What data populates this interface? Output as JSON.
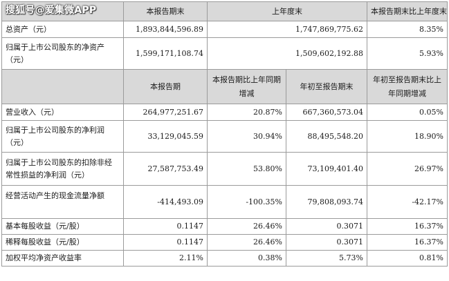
{
  "watermark": "搜狐号@爱集微APP",
  "table1": {
    "headers": [
      "",
      "本报告期末",
      "上年度末",
      "本报告期末比上年度末增减"
    ],
    "rows": [
      {
        "label": "总资产（元）",
        "current": "1,893,844,596.89",
        "prior": "1,747,869,775.62",
        "change": "8.35%"
      },
      {
        "label_line1": "归属于上市公司股东的净资产",
        "label_line2": "（元）",
        "current": "1,599,171,108.74",
        "prior": "1,509,602,192.88",
        "change": "5.93%"
      }
    ]
  },
  "table2": {
    "headers": [
      "",
      "本报告期",
      {
        "line1": "本报告期比上年同期",
        "line2": "增减"
      },
      "年初至报告期末",
      {
        "line1": "年初至报告期末比上",
        "line2": "年同期增减"
      }
    ],
    "rows": [
      {
        "label": "营业收入（元）",
        "period": "264,977,251.67",
        "period_change": "20.87%",
        "ytd": "667,360,573.04",
        "ytd_change": "0.05%"
      },
      {
        "label_line1": "归属于上市公司股东的净利润",
        "label_line2": "（元）",
        "period": "33,129,045.59",
        "period_change": "30.94%",
        "ytd": "88,495,548.20",
        "ytd_change": "18.90%"
      },
      {
        "label_line1": "归属于上市公司股东的扣除非经",
        "label_line2": "常性损益的净利润（元）",
        "period": "27,587,753.49",
        "period_change": "53.80%",
        "ytd": "73,109,401.40",
        "ytd_change": "26.97%"
      },
      {
        "label": "经营活动产生的现金流量净额",
        "period": "-414,493.09",
        "period_change": "-100.35%",
        "ytd": "79,808,093.74",
        "ytd_change": "-42.17%"
      },
      {
        "label": "基本每股收益（元/股）",
        "period": "0.1147",
        "period_change": "26.46%",
        "ytd": "0.3071",
        "ytd_change": "16.37%"
      },
      {
        "label": "稀释每股收益（元/股）",
        "period": "0.1147",
        "period_change": "26.46%",
        "ytd": "0.3071",
        "ytd_change": "16.37%"
      },
      {
        "label": "加权平均净资产收益率",
        "period": "2.11%",
        "period_change": "0.38%",
        "ytd": "5.73%",
        "ytd_change": "0.81%"
      }
    ]
  }
}
